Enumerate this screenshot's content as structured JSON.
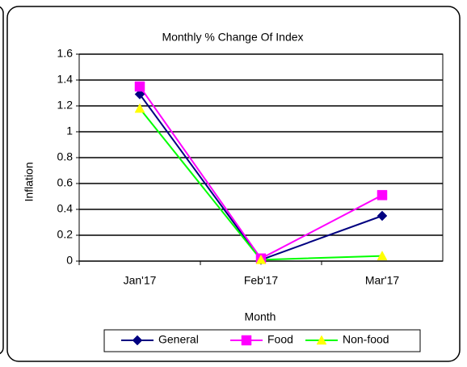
{
  "chart_data": {
    "type": "line",
    "title": "Monthly % Change Of Index",
    "x_label": "Month",
    "y_label": "Inflation",
    "categories": [
      "Jan'17",
      "Feb'17",
      "Mar'17"
    ],
    "series": [
      {
        "name": "General",
        "color": "#000080",
        "marker": "diamond",
        "marker_color": "#000080",
        "values": [
          1.29,
          0.01,
          0.35
        ]
      },
      {
        "name": "Food",
        "color": "#ff00ff",
        "marker": "square",
        "marker_color": "#ff00ff",
        "values": [
          1.35,
          0.02,
          0.51
        ]
      },
      {
        "name": "Non-food",
        "color": "#00ff00",
        "marker": "triangle",
        "marker_color": "#ffff00",
        "values": [
          1.18,
          0.01,
          0.04
        ]
      }
    ],
    "ylim": [
      0,
      1.6
    ],
    "yticks": [
      0,
      0.2,
      0.4,
      0.6,
      0.8,
      1,
      1.2,
      1.4,
      1.6
    ],
    "grid": true,
    "legend": "bottom"
  }
}
